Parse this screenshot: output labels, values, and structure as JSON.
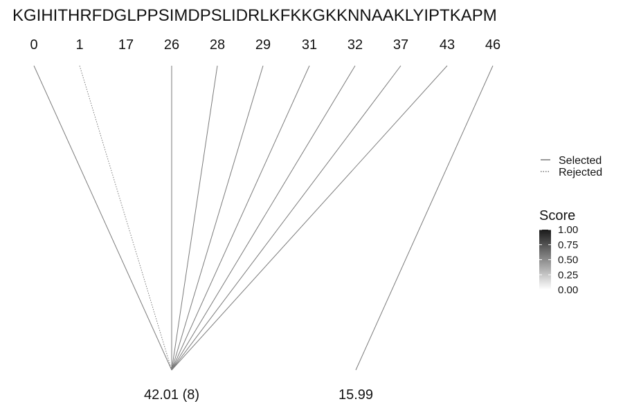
{
  "sequence": "KGIHITHRFDGLPPSIMDPSLIDRLKFKKGKKNNAAKLYIPTKAPM",
  "positions": [
    {
      "label": "0",
      "status": "selected",
      "group": 0
    },
    {
      "label": "1",
      "status": "rejected",
      "group": 0
    },
    {
      "label": "17",
      "status": "none",
      "group": null
    },
    {
      "label": "26",
      "status": "selected",
      "group": 0
    },
    {
      "label": "28",
      "status": "selected",
      "group": 0
    },
    {
      "label": "29",
      "status": "selected",
      "group": 0
    },
    {
      "label": "31",
      "status": "selected",
      "group": 0
    },
    {
      "label": "32",
      "status": "selected",
      "group": 0
    },
    {
      "label": "37",
      "status": "selected",
      "group": 0
    },
    {
      "label": "43",
      "status": "selected",
      "group": 0
    },
    {
      "label": "46",
      "status": "selected",
      "group": 1
    }
  ],
  "groups": [
    {
      "label": "42.01 (8)"
    },
    {
      "label": "15.99"
    }
  ],
  "legend": {
    "selected_label": "Selected",
    "rejected_label": "Rejected"
  },
  "score_scale": {
    "title": "Score",
    "ticks": [
      "1.00",
      "0.75",
      "0.50",
      "0.25",
      "0.00"
    ],
    "color_high": "#1a1a1a",
    "color_low": "#ffffff"
  },
  "line_color": "#7a7a7a"
}
